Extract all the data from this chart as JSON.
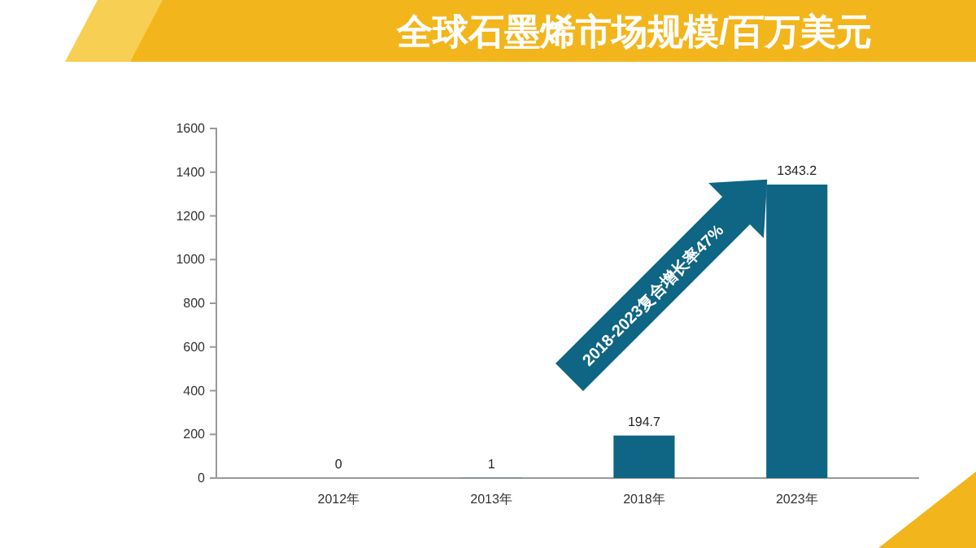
{
  "chart_data": {
    "type": "bar",
    "title": "全球石墨烯市场规模/百万美元",
    "categories": [
      "2012年",
      "2013年",
      "2018年",
      "2023年"
    ],
    "values": [
      0,
      1,
      194.7,
      1343.2
    ],
    "color": "#0e6584",
    "ylim": [
      0,
      1600
    ],
    "yticks": [
      0,
      200,
      400,
      600,
      800,
      1000,
      1200,
      1400,
      1600
    ],
    "grid": false,
    "data_labels": true,
    "annotations": [
      "2018-2023复合增长率47%"
    ]
  }
}
